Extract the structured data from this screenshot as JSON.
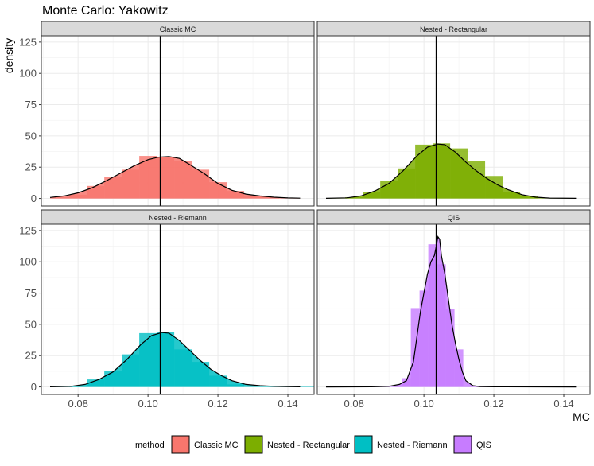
{
  "chart_data": {
    "type": "histogram-density-facet",
    "title": "Monte Carlo: Yakowitz",
    "xlabel": "MC",
    "ylabel": "density",
    "xlim": [
      0.0695,
      0.1475
    ],
    "ylim": [
      -6,
      130
    ],
    "x_ticks": [
      0.08,
      0.1,
      0.12,
      0.14
    ],
    "x_tick_labels": [
      "0.08",
      "0.10",
      "0.12",
      "0.14"
    ],
    "y_ticks": [
      0,
      25,
      50,
      75,
      100,
      125
    ],
    "y_tick_labels": [
      "0",
      "25",
      "50",
      "75",
      "100",
      "125"
    ],
    "vline_x": 0.1035,
    "legend": {
      "title": "method",
      "position": "bottom",
      "entries": [
        {
          "label": "Classic MC",
          "color": "#F8766D"
        },
        {
          "label": "Nested - Rectangular",
          "color": "#7CAE00"
        },
        {
          "label": "Nested - Riemann",
          "color": "#00BFC4"
        },
        {
          "label": "QIS",
          "color": "#C77CFF"
        }
      ]
    },
    "panels": [
      {
        "name": "Classic MC",
        "color": "#F8766D",
        "bin_width": 0.005,
        "bins": [
          {
            "x": 0.075,
            "h": 1
          },
          {
            "x": 0.08,
            "h": 3
          },
          {
            "x": 0.085,
            "h": 10
          },
          {
            "x": 0.09,
            "h": 17
          },
          {
            "x": 0.095,
            "h": 23
          },
          {
            "x": 0.1,
            "h": 34
          },
          {
            "x": 0.105,
            "h": 33
          },
          {
            "x": 0.11,
            "h": 30
          },
          {
            "x": 0.115,
            "h": 23
          },
          {
            "x": 0.12,
            "h": 13
          },
          {
            "x": 0.125,
            "h": 6
          },
          {
            "x": 0.13,
            "h": 2
          },
          {
            "x": 0.135,
            "h": 1
          }
        ],
        "density": [
          [
            0.072,
            0.8
          ],
          [
            0.076,
            2
          ],
          [
            0.08,
            4.5
          ],
          [
            0.084,
            8.5
          ],
          [
            0.088,
            14
          ],
          [
            0.092,
            20
          ],
          [
            0.096,
            26
          ],
          [
            0.1,
            31
          ],
          [
            0.103,
            33
          ],
          [
            0.106,
            33.5
          ],
          [
            0.109,
            32
          ],
          [
            0.112,
            27
          ],
          [
            0.116,
            20
          ],
          [
            0.12,
            12
          ],
          [
            0.124,
            6.5
          ],
          [
            0.128,
            3.5
          ],
          [
            0.132,
            2
          ],
          [
            0.136,
            1
          ],
          [
            0.14,
            0.4
          ],
          [
            0.1435,
            0.2
          ]
        ]
      },
      {
        "name": "Nested - Rectangular",
        "color": "#7CAE00",
        "bin_width": 0.005,
        "bins": [
          {
            "x": 0.08,
            "h": 1
          },
          {
            "x": 0.085,
            "h": 5
          },
          {
            "x": 0.09,
            "h": 14
          },
          {
            "x": 0.095,
            "h": 24
          },
          {
            "x": 0.1,
            "h": 43
          },
          {
            "x": 0.105,
            "h": 44
          },
          {
            "x": 0.11,
            "h": 40
          },
          {
            "x": 0.115,
            "h": 30
          },
          {
            "x": 0.12,
            "h": 18
          },
          {
            "x": 0.125,
            "h": 5
          },
          {
            "x": 0.13,
            "h": 2
          }
        ],
        "density": [
          [
            0.072,
            0.1
          ],
          [
            0.078,
            0.5
          ],
          [
            0.082,
            2
          ],
          [
            0.086,
            6
          ],
          [
            0.09,
            12
          ],
          [
            0.094,
            22
          ],
          [
            0.098,
            34
          ],
          [
            0.101,
            41
          ],
          [
            0.104,
            43.5
          ],
          [
            0.106,
            43
          ],
          [
            0.109,
            37
          ],
          [
            0.112,
            29
          ],
          [
            0.115,
            22
          ],
          [
            0.118,
            16
          ],
          [
            0.121,
            11
          ],
          [
            0.124,
            7
          ],
          [
            0.128,
            3
          ],
          [
            0.132,
            1
          ],
          [
            0.136,
            0.3
          ],
          [
            0.1435,
            0.1
          ]
        ]
      },
      {
        "name": "Nested - Riemann",
        "color": "#00BFC4",
        "bin_width": 0.005,
        "bins": [
          {
            "x": 0.08,
            "h": 1
          },
          {
            "x": 0.085,
            "h": 6
          },
          {
            "x": 0.09,
            "h": 13
          },
          {
            "x": 0.095,
            "h": 26
          },
          {
            "x": 0.1,
            "h": 43
          },
          {
            "x": 0.105,
            "h": 44
          },
          {
            "x": 0.11,
            "h": 30
          },
          {
            "x": 0.115,
            "h": 20
          },
          {
            "x": 0.12,
            "h": 9
          },
          {
            "x": 0.125,
            "h": 2
          },
          {
            "x": 0.145,
            "h": 0.5
          }
        ],
        "density": [
          [
            0.072,
            0.1
          ],
          [
            0.078,
            0.5
          ],
          [
            0.082,
            2
          ],
          [
            0.086,
            6
          ],
          [
            0.09,
            12
          ],
          [
            0.094,
            22
          ],
          [
            0.098,
            34
          ],
          [
            0.101,
            41
          ],
          [
            0.104,
            43.5
          ],
          [
            0.106,
            43
          ],
          [
            0.109,
            37
          ],
          [
            0.112,
            29
          ],
          [
            0.115,
            21
          ],
          [
            0.118,
            14
          ],
          [
            0.121,
            9
          ],
          [
            0.124,
            5
          ],
          [
            0.128,
            2
          ],
          [
            0.132,
            1
          ],
          [
            0.136,
            0.5
          ],
          [
            0.14,
            0.2
          ],
          [
            0.1435,
            0.1
          ]
        ]
      },
      {
        "name": "QIS",
        "color": "#C77CFF",
        "bin_width": 0.0025,
        "bins": [
          {
            "x": 0.0925,
            "h": 1
          },
          {
            "x": 0.095,
            "h": 7
          },
          {
            "x": 0.0975,
            "h": 63
          },
          {
            "x": 0.1,
            "h": 77
          },
          {
            "x": 0.1025,
            "h": 114
          },
          {
            "x": 0.105,
            "h": 98
          },
          {
            "x": 0.1075,
            "h": 62
          },
          {
            "x": 0.11,
            "h": 30
          },
          {
            "x": 0.1125,
            "h": 1
          },
          {
            "x": 0.115,
            "h": 0.5
          }
        ],
        "density": [
          [
            0.072,
            0
          ],
          [
            0.085,
            0.1
          ],
          [
            0.09,
            0.5
          ],
          [
            0.093,
            2
          ],
          [
            0.095,
            5
          ],
          [
            0.097,
            20
          ],
          [
            0.098,
            40
          ],
          [
            0.099,
            60
          ],
          [
            0.1,
            75
          ],
          [
            0.101,
            90
          ],
          [
            0.102,
            100
          ],
          [
            0.103,
            105
          ],
          [
            0.1035,
            112
          ],
          [
            0.104,
            120
          ],
          [
            0.1045,
            118
          ],
          [
            0.105,
            105
          ],
          [
            0.106,
            90
          ],
          [
            0.107,
            70
          ],
          [
            0.108,
            50
          ],
          [
            0.109,
            35
          ],
          [
            0.11,
            22
          ],
          [
            0.111,
            12
          ],
          [
            0.112,
            5
          ],
          [
            0.114,
            1
          ],
          [
            0.116,
            0.3
          ],
          [
            0.12,
            0.1
          ],
          [
            0.1435,
            0
          ]
        ]
      }
    ]
  }
}
